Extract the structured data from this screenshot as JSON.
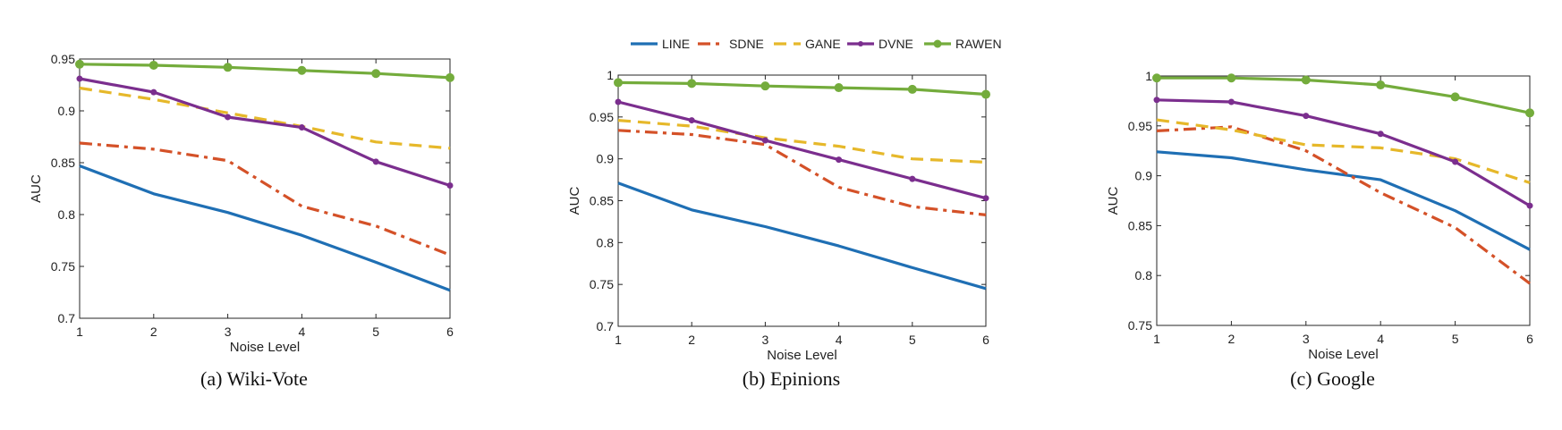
{
  "series_styles": [
    {
      "name": "LINE",
      "color": "#1f6fb4",
      "dash": "solid",
      "marker": "none"
    },
    {
      "name": "SDNE",
      "color": "#d45128",
      "dash": "dashdot",
      "marker": "none"
    },
    {
      "name": "GANE",
      "color": "#e6b82a",
      "dash": "dashed",
      "marker": "none"
    },
    {
      "name": "DVNE",
      "color": "#7b2e8e",
      "dash": "solid",
      "marker": "dot"
    },
    {
      "name": "RAWEN",
      "color": "#74ac3c",
      "dash": "solid",
      "marker": "circle"
    }
  ],
  "chart_data": [
    {
      "type": "line",
      "caption": "(a) Wiki-Vote",
      "xlabel": "Noise Level",
      "ylabel": "AUC",
      "x": [
        1,
        2,
        3,
        4,
        5,
        6
      ],
      "ylim": [
        0.7,
        0.95
      ],
      "xticks": [
        "1",
        "2",
        "3",
        "4",
        "5",
        "6"
      ],
      "yticks": [
        "0.7",
        "0.75",
        "0.8",
        "0.85",
        "0.9",
        "0.95"
      ],
      "series": [
        {
          "name": "LINE",
          "values": [
            0.847,
            0.82,
            0.802,
            0.78,
            0.754,
            0.727
          ]
        },
        {
          "name": "SDNE",
          "values": [
            0.869,
            0.863,
            0.852,
            0.808,
            0.789,
            0.761
          ]
        },
        {
          "name": "GANE",
          "values": [
            0.922,
            0.911,
            0.898,
            0.885,
            0.87,
            0.864
          ]
        },
        {
          "name": "DVNE",
          "values": [
            0.931,
            0.918,
            0.894,
            0.884,
            0.851,
            0.828
          ]
        },
        {
          "name": "RAWEN",
          "values": [
            0.945,
            0.944,
            0.942,
            0.939,
            0.936,
            0.932
          ]
        }
      ]
    },
    {
      "type": "line",
      "caption": "(b) Epinions",
      "xlabel": "Noise Level",
      "ylabel": "AUC",
      "x": [
        1,
        2,
        3,
        4,
        5,
        6
      ],
      "ylim": [
        0.7,
        1.0
      ],
      "xticks": [
        "1",
        "2",
        "3",
        "4",
        "5",
        "6"
      ],
      "yticks": [
        "0.7",
        "0.75",
        "0.8",
        "0.85",
        "0.9",
        "0.95",
        "1"
      ],
      "series": [
        {
          "name": "LINE",
          "values": [
            0.871,
            0.839,
            0.819,
            0.796,
            0.77,
            0.745
          ]
        },
        {
          "name": "SDNE",
          "values": [
            0.934,
            0.929,
            0.917,
            0.866,
            0.843,
            0.833
          ]
        },
        {
          "name": "GANE",
          "values": [
            0.946,
            0.939,
            0.925,
            0.915,
            0.9,
            0.896
          ]
        },
        {
          "name": "DVNE",
          "values": [
            0.968,
            0.946,
            0.922,
            0.899,
            0.876,
            0.853
          ]
        },
        {
          "name": "RAWEN",
          "values": [
            0.991,
            0.99,
            0.987,
            0.985,
            0.983,
            0.977
          ]
        }
      ]
    },
    {
      "type": "line",
      "caption": "(c) Google",
      "xlabel": "Noise Level",
      "ylabel": "AUC",
      "x": [
        1,
        2,
        3,
        4,
        5,
        6
      ],
      "ylim": [
        0.75,
        1.0
      ],
      "xticks": [
        "1",
        "2",
        "3",
        "4",
        "5",
        "6"
      ],
      "yticks": [
        "0.75",
        "0.8",
        "0.85",
        "0.9",
        "0.95",
        "1"
      ],
      "series": [
        {
          "name": "LINE",
          "values": [
            0.924,
            0.918,
            0.906,
            0.896,
            0.865,
            0.826
          ]
        },
        {
          "name": "SDNE",
          "values": [
            0.945,
            0.949,
            0.925,
            0.883,
            0.848,
            0.792
          ]
        },
        {
          "name": "GANE",
          "values": [
            0.956,
            0.946,
            0.931,
            0.928,
            0.917,
            0.893
          ]
        },
        {
          "name": "DVNE",
          "values": [
            0.976,
            0.974,
            0.96,
            0.942,
            0.914,
            0.87
          ]
        },
        {
          "name": "RAWEN",
          "values": [
            0.998,
            0.998,
            0.996,
            0.991,
            0.979,
            0.963
          ]
        }
      ]
    }
  ]
}
